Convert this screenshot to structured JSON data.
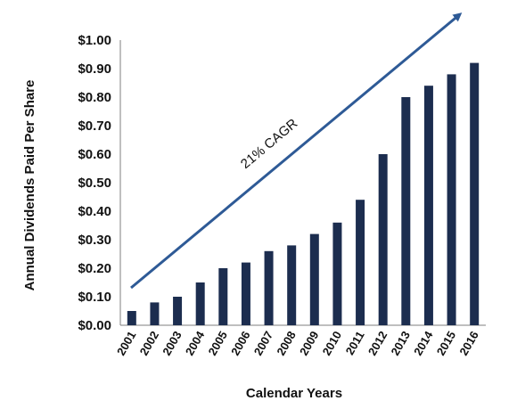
{
  "chart_data": {
    "type": "bar",
    "title": "",
    "xlabel": "Calendar Years",
    "ylabel": "Annual Dividends Paid Per Share",
    "categories": [
      "2001",
      "2002",
      "2003",
      "2004",
      "2005",
      "2006",
      "2007",
      "2008",
      "2009",
      "2010",
      "2011",
      "2012",
      "2013",
      "2014",
      "2015",
      "2016"
    ],
    "values": [
      0.05,
      0.08,
      0.1,
      0.15,
      0.2,
      0.22,
      0.26,
      0.28,
      0.32,
      0.36,
      0.44,
      0.6,
      0.8,
      0.84,
      0.88,
      0.92
    ],
    "yticks": [
      "$0.00",
      "$0.10",
      "$0.20",
      "$0.30",
      "$0.40",
      "$0.50",
      "$0.60",
      "$0.70",
      "$0.80",
      "$0.90",
      "$1.00"
    ],
    "ylim": [
      0,
      1.0
    ],
    "grid": false,
    "legend": "none",
    "annotation": "21% CAGR",
    "bar_color": "#1c2d4f",
    "arrow_color": "#2e5a96"
  }
}
